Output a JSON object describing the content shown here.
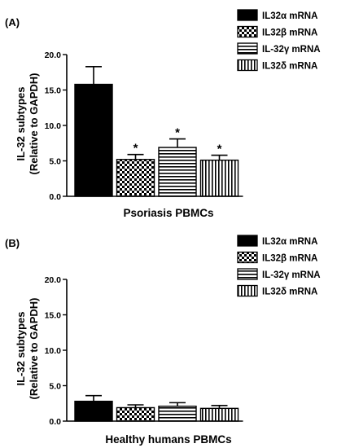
{
  "chart_data": [
    {
      "type": "bar",
      "panel_label": "(A)",
      "xlabel": "Psoriasis PBMCs",
      "ylabel_line1": "IL-32 subtypes",
      "ylabel_line2": "(Relative to GAPDH)",
      "ylim": [
        0,
        20
      ],
      "yticks": [
        "0.0",
        "5.0",
        "10.0",
        "15.0",
        "20.0"
      ],
      "legend_placement": "top-right",
      "series": [
        {
          "name": "IL32α mRNA",
          "value": 15.8,
          "error": 2.5,
          "pattern": "solid",
          "marker": ""
        },
        {
          "name": "IL32β mRNA",
          "value": 5.2,
          "error": 0.7,
          "pattern": "checker",
          "marker": "*"
        },
        {
          "name": "IL-32γ mRNA",
          "value": 6.9,
          "error": 1.2,
          "pattern": "hlines",
          "marker": "*"
        },
        {
          "name": "IL32δ mRNA",
          "value": 5.1,
          "error": 0.7,
          "pattern": "vlines",
          "marker": "*"
        }
      ]
    },
    {
      "type": "bar",
      "panel_label": "(B)",
      "xlabel": "Healthy humans PBMCs",
      "ylabel_line1": "IL-32 subtypes",
      "ylabel_line2": "(Relative to GAPDH)",
      "ylim": [
        0,
        20
      ],
      "yticks": [
        "0.0",
        "5.0",
        "10.0",
        "15.0",
        "20.0"
      ],
      "legend_placement": "top-right",
      "series": [
        {
          "name": "IL32α mRNA",
          "value": 2.8,
          "error": 0.8,
          "pattern": "solid",
          "marker": ""
        },
        {
          "name": "IL32β mRNA",
          "value": 1.9,
          "error": 0.4,
          "pattern": "checker",
          "marker": ""
        },
        {
          "name": "IL-32γ mRNA",
          "value": 2.1,
          "error": 0.5,
          "pattern": "hlines",
          "marker": ""
        },
        {
          "name": "IL32δ mRNA",
          "value": 1.8,
          "error": 0.4,
          "pattern": "vlines",
          "marker": ""
        }
      ]
    }
  ]
}
